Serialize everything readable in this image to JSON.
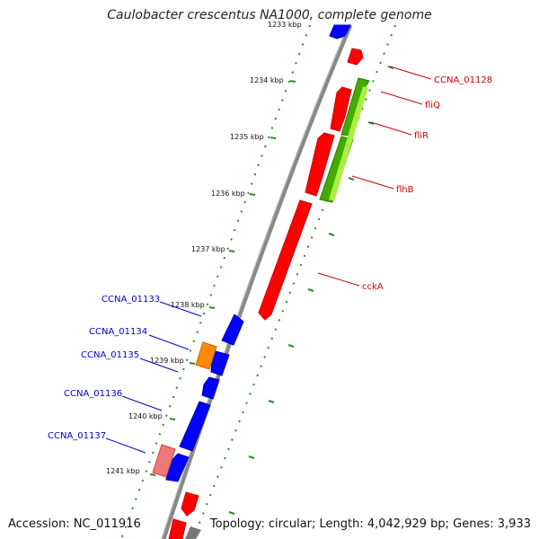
{
  "title": "Caulobacter crescentus NA1000, complete genome",
  "footer": {
    "accession": "Accession: NC_011916",
    "summary": "Topology: circular; Length: 4,042,929 bp; Genes: 3,933"
  },
  "colors": {
    "forward_gene": "#ff0000",
    "reverse_gene": "#0000ff",
    "orf_green": "#44aa00",
    "highlight_orange": "#ff8800",
    "pseudo_pink": "#ee7777",
    "backbone": "#888888",
    "tick": "#2a8a2a",
    "label_forward": "#cc0000",
    "label_reverse": "#0000cc"
  },
  "scale_ticks": [
    "1233 kbp",
    "1234 kbp",
    "1235 kbp",
    "1236 kbp",
    "1237 kbp",
    "1238 kbp",
    "1239 kbp",
    "1240 kbp",
    "1241 kbp"
  ],
  "gene_labels": {
    "forward": [
      "CCNA_01128",
      "fliQ",
      "fliR",
      "flhB",
      "cckA"
    ],
    "reverse": [
      "CCNA_01133",
      "CCNA_01134",
      "CCNA_01135",
      "CCNA_01136",
      "CCNA_01137"
    ]
  }
}
